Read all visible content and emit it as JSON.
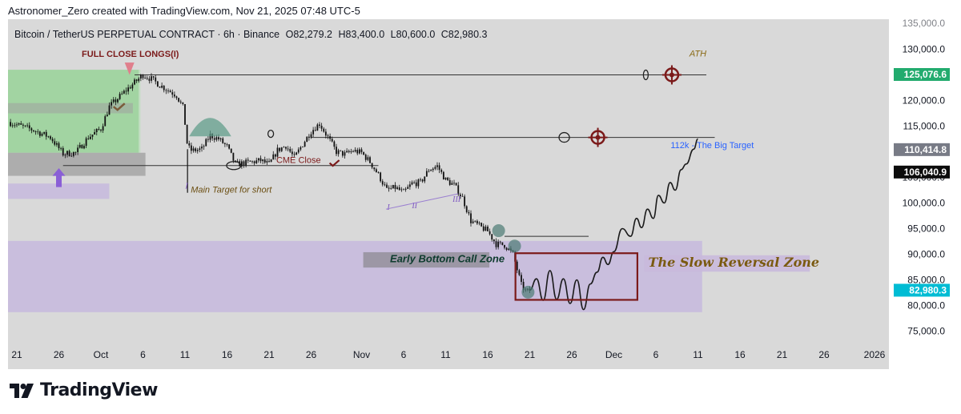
{
  "header": {
    "credit": "Astronomer_Zero created with TradingView.com, Nov 21, 2025 07:48 UTC-5"
  },
  "symbol": {
    "name": "Bitcoin / TetherUS PERPETUAL CONTRACT · 6h · Binance",
    "open": "O82,279.2",
    "high": "H83,400.0",
    "low": "L80,600.0",
    "close": "C82,980.3"
  },
  "brand": {
    "name": "TradingView"
  },
  "colors": {
    "chart_bg": "#d9d9d9",
    "candle": "#111111",
    "zone_purple": "#c5b9dd",
    "zone_green": "#8fd18f",
    "badge_green": "#22ab6e",
    "badge_gray": "#787b86",
    "badge_black": "#0c0c0c",
    "badge_cyan": "#00bcd4",
    "dark_red": "#7b1a1a",
    "ath_gold": "#8a6a15",
    "target_blue": "#2962ff",
    "roman_purple": "#7e57c2"
  },
  "chart_data": {
    "type": "candlestick",
    "title": "Bitcoin / TetherUS PERPETUAL CONTRACT · 6h · Binance",
    "y_axis": {
      "range": [
        73000,
        136000
      ],
      "ticks": [
        75000,
        80000,
        85000,
        90000,
        95000,
        100000,
        105000,
        110000,
        115000,
        120000,
        125000,
        130000,
        135000
      ],
      "tick_labels": [
        "75,000.0",
        "80,000.0",
        "85,000.0",
        "90,000.0",
        "95,000.0",
        "100,000.0",
        "105,000.0",
        "110,000.0",
        "115,000.0",
        "120,000.0",
        "125,000.0",
        "130,000.0",
        "135,000.0"
      ]
    },
    "x_axis": {
      "ticks": [
        {
          "day": -10,
          "label": "21"
        },
        {
          "day": -5,
          "label": "26"
        },
        {
          "day": 0,
          "label": "Oct"
        },
        {
          "day": 5,
          "label": "6"
        },
        {
          "day": 10,
          "label": "11"
        },
        {
          "day": 15,
          "label": "16"
        },
        {
          "day": 20,
          "label": "21"
        },
        {
          "day": 25,
          "label": "26"
        },
        {
          "day": 31,
          "label": "Nov"
        },
        {
          "day": 36,
          "label": "6"
        },
        {
          "day": 41,
          "label": "11"
        },
        {
          "day": 46,
          "label": "16"
        },
        {
          "day": 51,
          "label": "21"
        },
        {
          "day": 56,
          "label": "26"
        },
        {
          "day": 61,
          "label": "Dec"
        },
        {
          "day": 66,
          "label": "6"
        },
        {
          "day": 71,
          "label": "11"
        },
        {
          "day": 76,
          "label": "16"
        },
        {
          "day": 81,
          "label": "21"
        },
        {
          "day": 86,
          "label": "26"
        },
        {
          "day": 92,
          "label": "2026"
        }
      ]
    },
    "price_path": [
      [
        -11,
        115800
      ],
      [
        -8,
        114200
      ],
      [
        -6,
        112800
      ],
      [
        -4.5,
        109600
      ],
      [
        -3,
        109800
      ],
      [
        -1.5,
        112800
      ],
      [
        0,
        114500
      ],
      [
        1,
        118800
      ],
      [
        3,
        122000
      ],
      [
        4,
        123500
      ],
      [
        5,
        125000
      ],
      [
        6,
        124200
      ],
      [
        7,
        123000
      ],
      [
        8,
        122000
      ],
      [
        9,
        121000
      ],
      [
        9.8,
        118500
      ],
      [
        10.3,
        111000
      ],
      [
        10.8,
        110200
      ],
      [
        12,
        110500
      ],
      [
        13,
        113200
      ],
      [
        14,
        112500
      ],
      [
        15,
        111000
      ],
      [
        16,
        107500
      ],
      [
        17,
        107800
      ],
      [
        18,
        108000
      ],
      [
        19,
        108300
      ],
      [
        20,
        107500
      ],
      [
        21,
        110300
      ],
      [
        22,
        111200
      ],
      [
        23,
        108800
      ],
      [
        24,
        111500
      ],
      [
        25,
        114000
      ],
      [
        26,
        115500
      ],
      [
        27,
        112800
      ],
      [
        28,
        110000
      ],
      [
        29,
        109500
      ],
      [
        30,
        110200
      ],
      [
        31,
        109800
      ],
      [
        32,
        108000
      ],
      [
        33,
        105500
      ],
      [
        34,
        102500
      ],
      [
        35,
        103000
      ],
      [
        36,
        102000
      ],
      [
        37,
        103800
      ],
      [
        38,
        104000
      ],
      [
        39,
        106500
      ],
      [
        40,
        107200
      ],
      [
        41,
        104500
      ],
      [
        42,
        103500
      ],
      [
        43,
        101000
      ],
      [
        44,
        96500
      ],
      [
        45,
        95500
      ],
      [
        46,
        94500
      ],
      [
        47,
        92000
      ],
      [
        48,
        91800
      ],
      [
        49,
        90000
      ],
      [
        50,
        84000
      ],
      [
        50.6,
        82600
      ],
      [
        51,
        82980
      ]
    ],
    "current_price": 82980.3,
    "projection_path": [
      [
        51,
        82980
      ],
      [
        51.8,
        85200
      ],
      [
        52.6,
        81000
      ],
      [
        53.4,
        86800
      ],
      [
        54.2,
        81200
      ],
      [
        55,
        85200
      ],
      [
        55.8,
        80400
      ],
      [
        56.6,
        85000
      ],
      [
        57.4,
        79200
      ],
      [
        58.2,
        84200
      ],
      [
        59,
        86500
      ],
      [
        59.7,
        89400
      ],
      [
        60.3,
        88000
      ],
      [
        61,
        90500
      ],
      [
        62,
        95000
      ],
      [
        63,
        93500
      ],
      [
        63.7,
        97000
      ],
      [
        64.3,
        95200
      ],
      [
        65,
        98800
      ],
      [
        65.7,
        97000
      ],
      [
        66.3,
        101500
      ],
      [
        67,
        100000
      ],
      [
        67.7,
        104000
      ],
      [
        68.3,
        102500
      ],
      [
        69,
        106500
      ],
      [
        69.6,
        107600
      ],
      [
        70.5,
        110500
      ],
      [
        71,
        112500
      ]
    ],
    "price_badges": [
      {
        "label": "125,076.6",
        "value": 125076.6,
        "color": "green"
      },
      {
        "label": "110,414.8",
        "value": 110414.8,
        "color": "gray"
      },
      {
        "label": "106,040.9",
        "value": 106040.9,
        "color": "black"
      },
      {
        "label": "82,980.3",
        "value": 82980.3,
        "color": "cyan"
      }
    ],
    "horizontal_lines": [
      {
        "name": "ath-line",
        "price": 125000,
        "from_day": 4,
        "to_day": 72
      },
      {
        "name": "target-112k-line",
        "price": 112800,
        "from_day": 25,
        "to_day": 73
      },
      {
        "name": "short-target-line",
        "price": 107300,
        "from_day": -4.5,
        "to_day": 33
      },
      {
        "name": "bottom-line",
        "price": 93500,
        "from_day": 48,
        "to_day": 58
      }
    ],
    "annotations": {
      "full_close_longs": "FULL CLOSE LONGS(I)",
      "ath": "ATH",
      "target_label": "112k - The Big Target",
      "cme_close": "CME Close",
      "main_target": "Main Target for short",
      "early_bottom": "Early Bottom Call Zone",
      "slow_reversal": "The Slow Reversal Zone",
      "roman_1": "I",
      "roman_2": "II",
      "roman_3": "III",
      "roman_4": "I"
    }
  }
}
